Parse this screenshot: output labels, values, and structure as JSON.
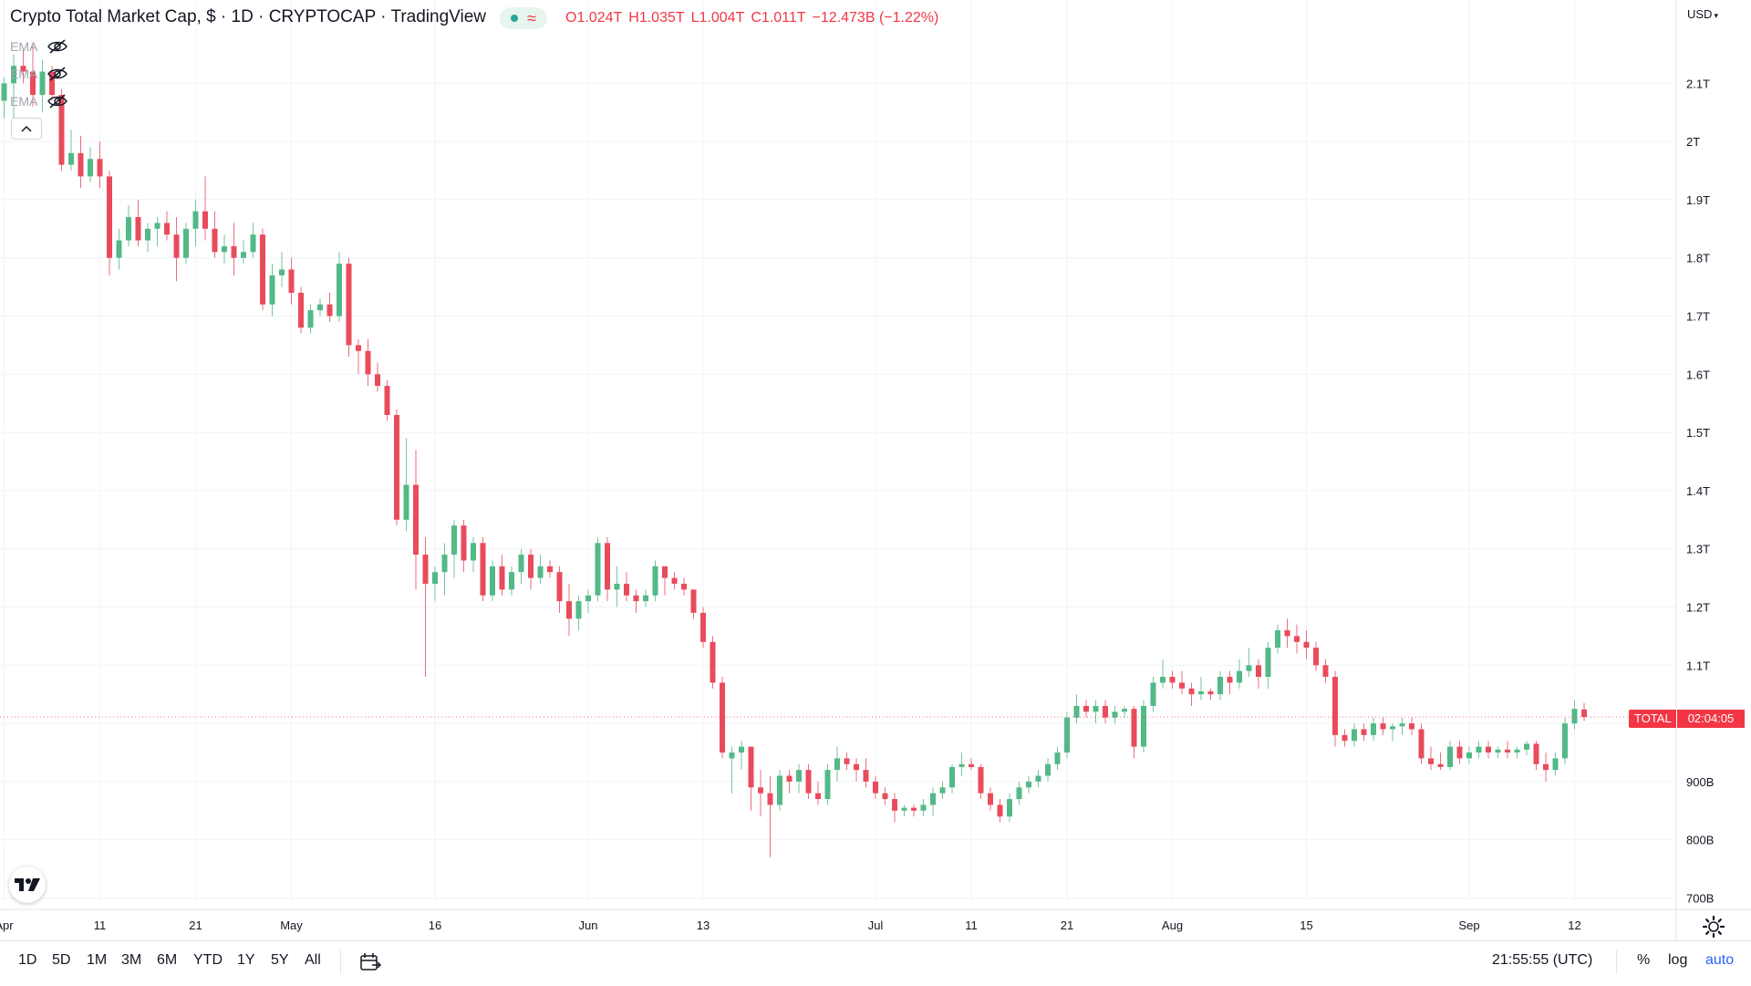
{
  "header": {
    "title": "Crypto Total Market Cap, $ · 1D · CRYPTOCAP · TradingView",
    "ohlc": {
      "open": "O1.024T",
      "high": "H1.035T",
      "low": "L1.004T",
      "close": "C1.011T",
      "change": "−12.473B (−1.22%)"
    },
    "status_color": "#26a69a"
  },
  "indicators": [
    {
      "label": "EMA",
      "icon": "eye-off-icon"
    },
    {
      "label": "EMA",
      "icon": "eye-off-icon"
    },
    {
      "label": "EMA",
      "icon": "eye-off-icon"
    }
  ],
  "price_scale": {
    "currency": "USD",
    "currency_arrow": "chevron-down-icon"
  },
  "price_tag": {
    "label": "TOTAL",
    "countdown": "02:04:05",
    "color": "#f23645"
  },
  "colors": {
    "up": "#26a69a",
    "down": "#f23645",
    "up_fill": "#52b987",
    "down_fill": "#e94b5c"
  },
  "toolbar": {
    "timeframes": [
      "1D",
      "5D",
      "1M",
      "3M",
      "6M",
      "YTD",
      "1Y",
      "5Y",
      "All"
    ],
    "clock": "21:55:55 (UTC)",
    "options": [
      "%",
      "log",
      "auto"
    ],
    "active_option": "auto"
  },
  "chart_data": {
    "type": "candlestick",
    "y_unit": "USD",
    "y_ticks": [
      {
        "v": 700,
        "label": "700B"
      },
      {
        "v": 800,
        "label": "800B"
      },
      {
        "v": 900,
        "label": "900B"
      },
      {
        "v": 1100,
        "label": "1.1T"
      },
      {
        "v": 1200,
        "label": "1.2T"
      },
      {
        "v": 1300,
        "label": "1.3T"
      },
      {
        "v": 1400,
        "label": "1.4T"
      },
      {
        "v": 1500,
        "label": "1.5T"
      },
      {
        "v": 1600,
        "label": "1.6T"
      },
      {
        "v": 1700,
        "label": "1.7T"
      },
      {
        "v": 1800,
        "label": "1.8T"
      },
      {
        "v": 1900,
        "label": "1.9T"
      },
      {
        "v": 2000,
        "label": "2T"
      },
      {
        "v": 2100,
        "label": "2.1T"
      }
    ],
    "ylim": [
      700,
      2150
    ],
    "x_labels": [
      {
        "i": 0,
        "label": "Apr"
      },
      {
        "i": 10,
        "label": "11"
      },
      {
        "i": 20,
        "label": "21"
      },
      {
        "i": 30,
        "label": "May"
      },
      {
        "i": 45,
        "label": "16"
      },
      {
        "i": 61,
        "label": "Jun"
      },
      {
        "i": 73,
        "label": "13"
      },
      {
        "i": 91,
        "label": "Jul"
      },
      {
        "i": 101,
        "label": "11"
      },
      {
        "i": 111,
        "label": "21"
      },
      {
        "i": 122,
        "label": "Aug"
      },
      {
        "i": 136,
        "label": "15"
      },
      {
        "i": 153,
        "label": "Sep"
      },
      {
        "i": 164,
        "label": "12"
      }
    ],
    "candles": [
      [
        2070,
        2110,
        2040,
        2100
      ],
      [
        2100,
        2150,
        2020,
        2130
      ],
      [
        2130,
        2160,
        2100,
        2120
      ],
      [
        2120,
        2170,
        2060,
        2080
      ],
      [
        2080,
        2140,
        2050,
        2120
      ],
      [
        2120,
        2130,
        2070,
        2080
      ],
      [
        2080,
        2090,
        1950,
        1960
      ],
      [
        1960,
        2020,
        1950,
        1980
      ],
      [
        1980,
        2010,
        1920,
        1940
      ],
      [
        1940,
        1990,
        1930,
        1970
      ],
      [
        1970,
        2000,
        1920,
        1940
      ],
      [
        1940,
        1950,
        1770,
        1800
      ],
      [
        1800,
        1850,
        1780,
        1830
      ],
      [
        1830,
        1890,
        1820,
        1870
      ],
      [
        1870,
        1900,
        1820,
        1830
      ],
      [
        1830,
        1860,
        1810,
        1850
      ],
      [
        1850,
        1870,
        1820,
        1860
      ],
      [
        1860,
        1880,
        1830,
        1840
      ],
      [
        1840,
        1870,
        1760,
        1800
      ],
      [
        1800,
        1860,
        1790,
        1850
      ],
      [
        1850,
        1900,
        1820,
        1880
      ],
      [
        1880,
        1940,
        1830,
        1850
      ],
      [
        1850,
        1880,
        1800,
        1810
      ],
      [
        1810,
        1840,
        1790,
        1820
      ],
      [
        1820,
        1860,
        1770,
        1800
      ],
      [
        1800,
        1830,
        1790,
        1810
      ],
      [
        1810,
        1860,
        1800,
        1840
      ],
      [
        1840,
        1850,
        1710,
        1720
      ],
      [
        1720,
        1790,
        1700,
        1770
      ],
      [
        1770,
        1810,
        1750,
        1780
      ],
      [
        1780,
        1800,
        1720,
        1740
      ],
      [
        1740,
        1750,
        1670,
        1680
      ],
      [
        1680,
        1720,
        1670,
        1710
      ],
      [
        1710,
        1730,
        1700,
        1720
      ],
      [
        1720,
        1740,
        1690,
        1700
      ],
      [
        1700,
        1810,
        1690,
        1790
      ],
      [
        1790,
        1800,
        1630,
        1650
      ],
      [
        1650,
        1660,
        1600,
        1640
      ],
      [
        1640,
        1660,
        1580,
        1600
      ],
      [
        1600,
        1620,
        1570,
        1580
      ],
      [
        1580,
        1590,
        1520,
        1530
      ],
      [
        1530,
        1540,
        1340,
        1350
      ],
      [
        1350,
        1490,
        1330,
        1410
      ],
      [
        1410,
        1470,
        1230,
        1290
      ],
      [
        1290,
        1320,
        1080,
        1240
      ],
      [
        1240,
        1270,
        1210,
        1260
      ],
      [
        1260,
        1310,
        1220,
        1290
      ],
      [
        1290,
        1350,
        1250,
        1340
      ],
      [
        1340,
        1350,
        1260,
        1280
      ],
      [
        1280,
        1320,
        1260,
        1310
      ],
      [
        1310,
        1320,
        1210,
        1220
      ],
      [
        1220,
        1280,
        1210,
        1270
      ],
      [
        1270,
        1290,
        1220,
        1230
      ],
      [
        1230,
        1270,
        1220,
        1260
      ],
      [
        1260,
        1300,
        1240,
        1290
      ],
      [
        1290,
        1300,
        1230,
        1250
      ],
      [
        1250,
        1290,
        1240,
        1270
      ],
      [
        1270,
        1280,
        1250,
        1260
      ],
      [
        1260,
        1270,
        1190,
        1210
      ],
      [
        1210,
        1240,
        1150,
        1180
      ],
      [
        1180,
        1220,
        1160,
        1210
      ],
      [
        1210,
        1230,
        1190,
        1220
      ],
      [
        1220,
        1320,
        1210,
        1310
      ],
      [
        1310,
        1320,
        1210,
        1230
      ],
      [
        1230,
        1270,
        1200,
        1240
      ],
      [
        1240,
        1260,
        1210,
        1220
      ],
      [
        1220,
        1230,
        1190,
        1210
      ],
      [
        1210,
        1230,
        1200,
        1220
      ],
      [
        1220,
        1280,
        1210,
        1270
      ],
      [
        1270,
        1270,
        1220,
        1250
      ],
      [
        1250,
        1260,
        1230,
        1240
      ],
      [
        1240,
        1250,
        1220,
        1230
      ],
      [
        1230,
        1230,
        1180,
        1190
      ],
      [
        1190,
        1200,
        1130,
        1140
      ],
      [
        1140,
        1150,
        1060,
        1070
      ],
      [
        1070,
        1080,
        940,
        950
      ],
      [
        940,
        960,
        880,
        950
      ],
      [
        950,
        970,
        920,
        960
      ],
      [
        960,
        960,
        850,
        890
      ],
      [
        890,
        920,
        840,
        880
      ],
      [
        880,
        910,
        770,
        860
      ],
      [
        860,
        920,
        850,
        910
      ],
      [
        910,
        920,
        880,
        900
      ],
      [
        900,
        930,
        880,
        920
      ],
      [
        920,
        930,
        870,
        880
      ],
      [
        880,
        900,
        860,
        870
      ],
      [
        870,
        930,
        860,
        920
      ],
      [
        920,
        960,
        900,
        940
      ],
      [
        940,
        950,
        920,
        930
      ],
      [
        930,
        940,
        900,
        920
      ],
      [
        920,
        940,
        890,
        900
      ],
      [
        900,
        910,
        870,
        880
      ],
      [
        880,
        890,
        860,
        870
      ],
      [
        870,
        880,
        830,
        850
      ],
      [
        850,
        860,
        840,
        855
      ],
      [
        855,
        860,
        840,
        850
      ],
      [
        850,
        870,
        840,
        860
      ],
      [
        860,
        890,
        840,
        880
      ],
      [
        880,
        900,
        870,
        890
      ],
      [
        890,
        930,
        880,
        925
      ],
      [
        925,
        950,
        910,
        930
      ],
      [
        930,
        940,
        920,
        925
      ],
      [
        925,
        930,
        870,
        880
      ],
      [
        880,
        890,
        850,
        860
      ],
      [
        860,
        870,
        830,
        840
      ],
      [
        840,
        880,
        830,
        870
      ],
      [
        870,
        900,
        860,
        890
      ],
      [
        890,
        910,
        880,
        900
      ],
      [
        900,
        920,
        890,
        910
      ],
      [
        910,
        940,
        900,
        930
      ],
      [
        930,
        960,
        920,
        950
      ],
      [
        950,
        1020,
        940,
        1010
      ],
      [
        1010,
        1050,
        1000,
        1030
      ],
      [
        1030,
        1040,
        1010,
        1020
      ],
      [
        1020,
        1040,
        1000,
        1030
      ],
      [
        1030,
        1040,
        1000,
        1010
      ],
      [
        1010,
        1030,
        1000,
        1020
      ],
      [
        1020,
        1030,
        1010,
        1025
      ],
      [
        1025,
        1030,
        940,
        960
      ],
      [
        960,
        1040,
        950,
        1030
      ],
      [
        1030,
        1080,
        1020,
        1070
      ],
      [
        1070,
        1110,
        1060,
        1080
      ],
      [
        1080,
        1090,
        1060,
        1070
      ],
      [
        1070,
        1090,
        1050,
        1060
      ],
      [
        1060,
        1070,
        1030,
        1050
      ],
      [
        1050,
        1080,
        1040,
        1055
      ],
      [
        1055,
        1060,
        1040,
        1050
      ],
      [
        1050,
        1090,
        1040,
        1080
      ],
      [
        1080,
        1090,
        1050,
        1070
      ],
      [
        1070,
        1110,
        1060,
        1090
      ],
      [
        1090,
        1130,
        1080,
        1100
      ],
      [
        1100,
        1110,
        1060,
        1080
      ],
      [
        1080,
        1140,
        1060,
        1130
      ],
      [
        1130,
        1170,
        1120,
        1160
      ],
      [
        1160,
        1180,
        1130,
        1150
      ],
      [
        1150,
        1170,
        1120,
        1140
      ],
      [
        1140,
        1160,
        1110,
        1130
      ],
      [
        1130,
        1140,
        1090,
        1100
      ],
      [
        1100,
        1110,
        1070,
        1080
      ],
      [
        1080,
        1090,
        960,
        980
      ],
      [
        980,
        990,
        960,
        970
      ],
      [
        970,
        1000,
        960,
        990
      ],
      [
        990,
        1000,
        970,
        980
      ],
      [
        980,
        1010,
        970,
        1000
      ],
      [
        1000,
        1010,
        980,
        990
      ],
      [
        990,
        1000,
        970,
        995
      ],
      [
        995,
        1010,
        980,
        1000
      ],
      [
        1000,
        1010,
        980,
        990
      ],
      [
        990,
        1000,
        930,
        940
      ],
      [
        940,
        960,
        920,
        930
      ],
      [
        930,
        950,
        920,
        925
      ],
      [
        925,
        970,
        920,
        960
      ],
      [
        960,
        970,
        930,
        940
      ],
      [
        940,
        960,
        930,
        950
      ],
      [
        950,
        970,
        940,
        960
      ],
      [
        960,
        970,
        940,
        950
      ],
      [
        950,
        960,
        940,
        955
      ],
      [
        955,
        970,
        940,
        950
      ],
      [
        950,
        960,
        940,
        955
      ],
      [
        955,
        970,
        945,
        965
      ],
      [
        965,
        970,
        920,
        930
      ],
      [
        930,
        950,
        900,
        920
      ],
      [
        920,
        950,
        910,
        940
      ],
      [
        940,
        1010,
        930,
        1000
      ],
      [
        1000,
        1040,
        990,
        1025
      ],
      [
        1024,
        1035,
        1004,
        1011
      ]
    ]
  }
}
